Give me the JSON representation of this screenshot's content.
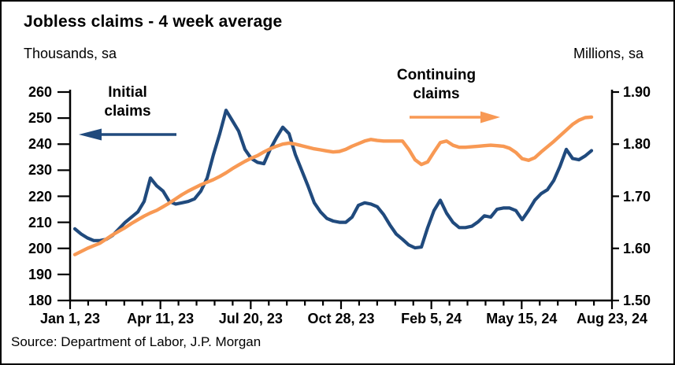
{
  "figure": {
    "title": "Jobless claims - 4 week average",
    "left_axis_title": "Thousands, sa",
    "right_axis_title": "Millions, sa",
    "source": "Source: Department of Labor, J.P. Morgan"
  },
  "annotations": {
    "initial": [
      "Initial",
      "claims"
    ],
    "continuing": [
      "Continuing",
      "claims"
    ]
  },
  "colors": {
    "initial_claims_line": "#204A7D",
    "continuing_claims_line": "#F89954",
    "axis": "#000000",
    "background": "#FFFFFF"
  },
  "chart_data": {
    "type": "line",
    "title": "Jobless claims - 4 week average",
    "frequency": "weekly",
    "grid": false,
    "legend_position": "in-plot arrow annotations",
    "x_range_labels": [
      "Jan 1, 23",
      "Aug 23, 24"
    ],
    "x_tick_labels": [
      "Jan 1, 23",
      "Apr 11, 23",
      "Jul 20, 23",
      "Oct 28, 23",
      "Feb 5, 24",
      "May 15, 24",
      "Aug 23, 24"
    ],
    "left_axis": {
      "title": "Thousands, sa",
      "lim": [
        180,
        260
      ],
      "ticks": [
        260,
        250,
        240,
        230,
        220,
        210,
        200,
        190,
        180
      ]
    },
    "right_axis": {
      "title": "Millions, sa",
      "lim": [
        1.5,
        1.9
      ],
      "ticks": [
        "1.90",
        "1.80",
        "1.70",
        "1.60",
        "1.50"
      ]
    },
    "series": [
      {
        "name": "Initial claims",
        "axis": "left",
        "unit": "thousands",
        "color": "#204A7D",
        "values": [
          207.5,
          205.5,
          204,
          203,
          203,
          203.5,
          205,
          207.5,
          210,
          212,
          214,
          218,
          227,
          224,
          222,
          218,
          217,
          217.5,
          218,
          219,
          222,
          227,
          236,
          244,
          253,
          249,
          245,
          238,
          234.5,
          233,
          232.5,
          238,
          242.5,
          246.5,
          244,
          236,
          230,
          224,
          217.5,
          214,
          211.5,
          210.5,
          210,
          210,
          212,
          216.5,
          217.5,
          217,
          216,
          213,
          209,
          205.5,
          203.5,
          201.3,
          200.2,
          200.5,
          208,
          214.5,
          218.5,
          213.5,
          210,
          208,
          208,
          208.5,
          210.2,
          212.5,
          212,
          215,
          215.5,
          215.5,
          214.5,
          211,
          214.5,
          218.5,
          221,
          222.5,
          226,
          231.5,
          238,
          234.5,
          234,
          235.5,
          237.5
        ]
      },
      {
        "name": "Continuing claims",
        "axis": "right",
        "unit": "millions",
        "color": "#F89954",
        "values": [
          1.588,
          1.594,
          1.6,
          1.605,
          1.61,
          1.618,
          1.626,
          1.633,
          1.64,
          1.648,
          1.655,
          1.662,
          1.668,
          1.673,
          1.68,
          1.687,
          1.695,
          1.703,
          1.71,
          1.716,
          1.722,
          1.727,
          1.732,
          1.738,
          1.745,
          1.753,
          1.76,
          1.767,
          1.773,
          1.778,
          1.785,
          1.791,
          1.796,
          1.8,
          1.802,
          1.8,
          1.797,
          1.794,
          1.791,
          1.789,
          1.787,
          1.785,
          1.786,
          1.79,
          1.796,
          1.801,
          1.806,
          1.809,
          1.807,
          1.806,
          1.806,
          1.806,
          1.806,
          1.79,
          1.77,
          1.761,
          1.766,
          1.785,
          1.803,
          1.806,
          1.798,
          1.794,
          1.794,
          1.795,
          1.796,
          1.797,
          1.798,
          1.797,
          1.796,
          1.792,
          1.784,
          1.772,
          1.769,
          1.774,
          1.785,
          1.795,
          1.805,
          1.816,
          1.827,
          1.838,
          1.846,
          1.851,
          1.852
        ]
      }
    ]
  }
}
